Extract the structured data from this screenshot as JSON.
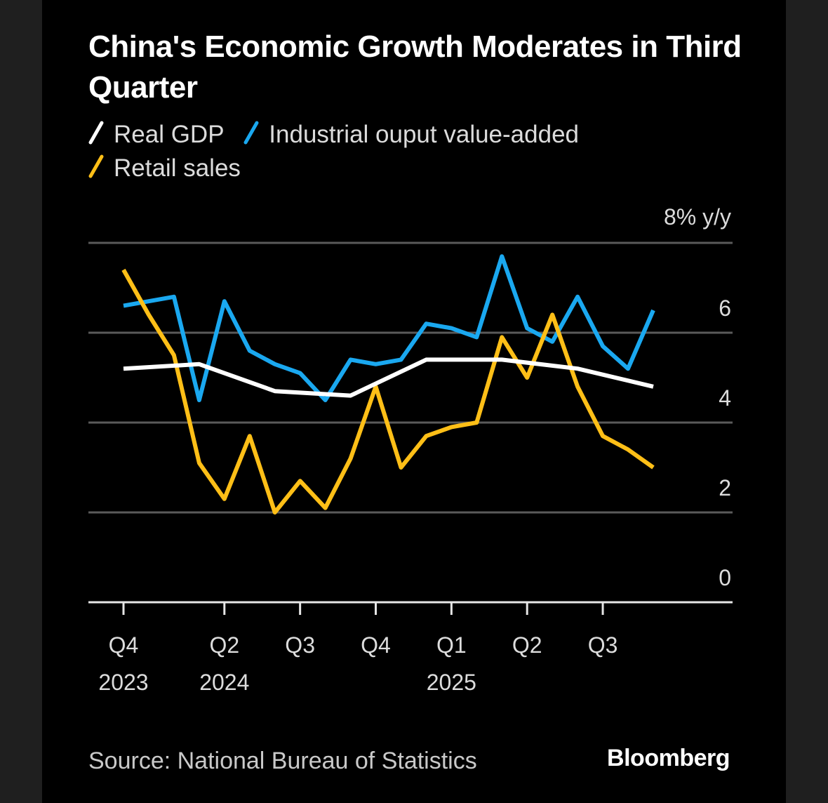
{
  "header": {
    "title": "China's Economic Growth Moderates in Third Quarter"
  },
  "footer": {
    "source": "Source: National Bureau of Statistics",
    "brand": "Bloomberg"
  },
  "colors": {
    "background": "#000000",
    "gdp": "#ffffff",
    "industrial": "#1aa8f0",
    "retail": "#ffbf17",
    "grid": "#5a5a5a"
  },
  "chart_data": {
    "type": "line",
    "title": "China's Economic Growth Moderates in Third Quarter",
    "ylabel": "8% y/y",
    "ylim": [
      0,
      8
    ],
    "yticks": [
      {
        "value": 0,
        "label": "0"
      },
      {
        "value": 2,
        "label": "2"
      },
      {
        "value": 4,
        "label": "4"
      },
      {
        "value": 6,
        "label": "6"
      },
      {
        "value": 8,
        "label": "8% y/y"
      }
    ],
    "xticks": [
      {
        "month": 0,
        "label": "Q4",
        "sublabel": "2023"
      },
      {
        "month": 4,
        "label": "Q2",
        "sublabel": "2024"
      },
      {
        "month": 7,
        "label": "Q3",
        "sublabel": ""
      },
      {
        "month": 10,
        "label": "Q4",
        "sublabel": ""
      },
      {
        "month": 13,
        "label": "Q1",
        "sublabel": "2025"
      },
      {
        "month": 16,
        "label": "Q2",
        "sublabel": ""
      },
      {
        "month": 19,
        "label": "Q3",
        "sublabel": ""
      }
    ],
    "grid": true,
    "legend": "top-left",
    "series": [
      {
        "name": "Real GDP",
        "color": "#ffffff",
        "points": [
          [
            0,
            5.2
          ],
          [
            3,
            5.3
          ],
          [
            6,
            4.7
          ],
          [
            9,
            4.6
          ],
          [
            12,
            5.4
          ],
          [
            15,
            5.4
          ],
          [
            18,
            5.2
          ],
          [
            21,
            4.8
          ]
        ]
      },
      {
        "name": "Industrial ouput value-added",
        "color": "#1aa8f0",
        "points": [
          [
            0,
            6.6
          ],
          [
            2,
            6.8
          ],
          [
            3,
            4.5
          ],
          [
            4,
            6.7
          ],
          [
            5,
            5.6
          ],
          [
            6,
            5.3
          ],
          [
            7,
            5.1
          ],
          [
            8,
            4.5
          ],
          [
            9,
            5.4
          ],
          [
            10,
            5.3
          ],
          [
            11,
            5.4
          ],
          [
            12,
            6.2
          ],
          [
            13,
            6.1
          ],
          [
            14,
            5.9
          ],
          [
            15,
            7.7
          ],
          [
            16,
            6.1
          ],
          [
            17,
            5.8
          ],
          [
            18,
            6.8
          ],
          [
            19,
            5.7
          ],
          [
            20,
            5.2
          ],
          [
            21,
            6.5
          ]
        ]
      },
      {
        "name": "Retail sales",
        "color": "#ffbf17",
        "points": [
          [
            0,
            7.4
          ],
          [
            1,
            6.4
          ],
          [
            2,
            5.5
          ],
          [
            3,
            3.1
          ],
          [
            4,
            2.3
          ],
          [
            5,
            3.7
          ],
          [
            6,
            2.0
          ],
          [
            7,
            2.7
          ],
          [
            8,
            2.1
          ],
          [
            9,
            3.2
          ],
          [
            10,
            4.8
          ],
          [
            11,
            3.0
          ],
          [
            12,
            3.7
          ],
          [
            13,
            3.9
          ],
          [
            14,
            4.0
          ],
          [
            15,
            5.9
          ],
          [
            16,
            5.0
          ],
          [
            17,
            6.4
          ],
          [
            18,
            4.8
          ],
          [
            19,
            3.7
          ],
          [
            20,
            3.4
          ],
          [
            21,
            3.0
          ]
        ]
      }
    ]
  }
}
